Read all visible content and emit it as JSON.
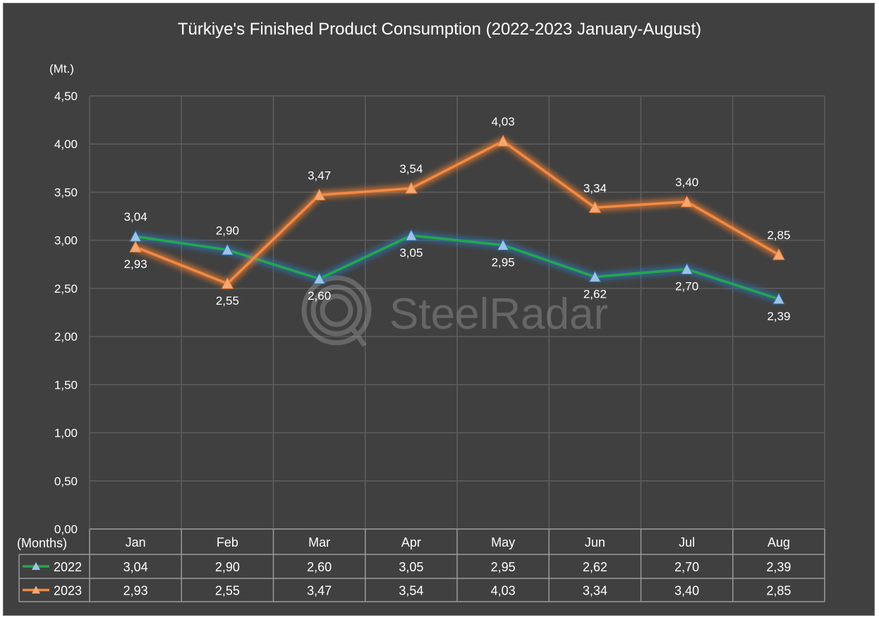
{
  "chart_data": {
    "type": "line",
    "title": "Türkiye's Finished Product Consumption  (2022-2023 January-August)",
    "ylabel": "(Mt.)",
    "xlabel": "(Months)",
    "categories": [
      "Jan",
      "Feb",
      "Mar",
      "Apr",
      "May",
      "Jun",
      "Jul",
      "Aug"
    ],
    "ylim": [
      0,
      4.5
    ],
    "y_ticks": [
      "0,00",
      "0,50",
      "1,00",
      "1,50",
      "2,00",
      "2,50",
      "3,00",
      "3,50",
      "4,00",
      "4,50"
    ],
    "grid": true,
    "legend": "data-table",
    "series": [
      {
        "name": "2022",
        "color": "#22a84a",
        "marker_color": "#9dc3e6",
        "glow": "#2e75b6",
        "values": [
          3.04,
          2.9,
          2.6,
          3.05,
          2.95,
          2.62,
          2.7,
          2.39
        ],
        "labels": [
          "3,04",
          "2,90",
          "2,60",
          "3,05",
          "2,95",
          "2,62",
          "2,70",
          "2,39"
        ]
      },
      {
        "name": "2023",
        "color": "#f28a44",
        "marker_color": "#f4a874",
        "glow": "#ed7d31",
        "values": [
          2.93,
          2.55,
          3.47,
          3.54,
          4.03,
          3.34,
          3.4,
          2.85
        ],
        "labels": [
          "2,93",
          "2,55",
          "3,47",
          "3,54",
          "4,03",
          "3,34",
          "3,40",
          "2,85"
        ]
      }
    ],
    "watermark": "SteelRadar"
  }
}
